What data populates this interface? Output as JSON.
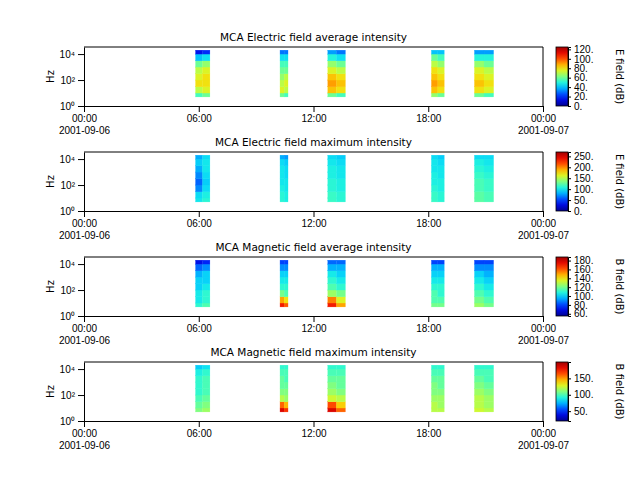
{
  "chart_data": [
    {
      "type": "heatmap",
      "title": "MCA  Electric field average intensity",
      "y_label": "Hz",
      "log": "y",
      "xlim": [
        "2001-09-06 00:00",
        "2001-09-07 00:00"
      ],
      "xticks": [
        {
          "value": "2001-09-06 00:00",
          "label": "00:00\n2001-09-06"
        },
        {
          "value": "2001-09-06 06:00",
          "label": "06:00"
        },
        {
          "value": "2001-09-06 12:00",
          "label": "12:00"
        },
        {
          "value": "2001-09-06 18:00",
          "label": "18:00"
        },
        {
          "value": "2001-09-07 00:00",
          "label": "00:00\n2001-09-07"
        }
      ],
      "ylim": [
        1,
        35000
      ],
      "yticks": [
        {
          "value": 1,
          "label": "10⁰"
        },
        {
          "value": 100,
          "label": "10²"
        },
        {
          "value": 10000,
          "label": "10⁴"
        }
      ],
      "x_bins": [
        [
          "2001-09-06 05:50",
          "2001-09-06 06:12"
        ],
        [
          "2001-09-06 06:12",
          "2001-09-06 06:35"
        ],
        [
          "2001-09-06 10:15",
          "2001-09-06 10:28"
        ],
        [
          "2001-09-06 10:28",
          "2001-09-06 10:40"
        ],
        [
          "2001-09-06 12:45",
          "2001-09-06 13:12"
        ],
        [
          "2001-09-06 13:12",
          "2001-09-06 13:40"
        ],
        [
          "2001-09-06 18:10",
          "2001-09-06 18:30"
        ],
        [
          "2001-09-06 18:30",
          "2001-09-06 18:50"
        ],
        [
          "2001-09-06 20:25",
          "2001-09-06 20:55"
        ],
        [
          "2001-09-06 20:55",
          "2001-09-06 21:25"
        ]
      ],
      "y_bins": [
        5,
        10,
        30,
        100,
        300,
        1000,
        3000,
        10000,
        20000
      ],
      "z": [
        [
          55,
          70,
          80,
          75,
          70,
          60,
          40,
          15
        ],
        [
          60,
          75,
          80,
          80,
          75,
          65,
          45,
          20
        ],
        [
          60,
          75,
          70,
          65,
          60,
          55,
          45,
          30
        ],
        [
          55,
          70,
          75,
          70,
          60,
          55,
          45,
          30
        ],
        [
          60,
          85,
          90,
          85,
          75,
          65,
          50,
          35
        ],
        [
          55,
          80,
          85,
          80,
          70,
          60,
          45,
          30
        ],
        [
          65,
          85,
          90,
          85,
          80,
          70,
          60,
          40
        ],
        [
          60,
          80,
          85,
          80,
          75,
          65,
          55,
          40
        ],
        [
          60,
          80,
          85,
          80,
          75,
          65,
          50,
          35
        ],
        [
          55,
          75,
          80,
          75,
          70,
          60,
          50,
          35
        ]
      ],
      "colorbar": {
        "label": "E field (dB)",
        "range": [
          0,
          125
        ],
        "ticks": [
          {
            "value": 0,
            "label": "0."
          },
          {
            "value": 20,
            "label": "20."
          },
          {
            "value": 40,
            "label": "40."
          },
          {
            "value": 60,
            "label": "60."
          },
          {
            "value": 80,
            "label": "80."
          },
          {
            "value": 100,
            "label": "100."
          },
          {
            "value": 120,
            "label": "120."
          }
        ]
      }
    },
    {
      "type": "heatmap",
      "title": "MCA  Electric field maximum intensity",
      "y_label": "Hz",
      "log": "y",
      "xlim": [
        "2001-09-06 00:00",
        "2001-09-07 00:00"
      ],
      "xticks": [
        {
          "value": "2001-09-06 00:00",
          "label": "00:00\n2001-09-06"
        },
        {
          "value": "2001-09-06 06:00",
          "label": "06:00"
        },
        {
          "value": "2001-09-06 12:00",
          "label": "12:00"
        },
        {
          "value": "2001-09-06 18:00",
          "label": "18:00"
        },
        {
          "value": "2001-09-07 00:00",
          "label": "00:00\n2001-09-07"
        }
      ],
      "ylim": [
        1,
        35000
      ],
      "yticks": [
        {
          "value": 1,
          "label": "10⁰"
        },
        {
          "value": 100,
          "label": "10²"
        },
        {
          "value": 10000,
          "label": "10⁴"
        }
      ],
      "x_bins": [
        [
          "2001-09-06 05:50",
          "2001-09-06 06:12"
        ],
        [
          "2001-09-06 06:12",
          "2001-09-06 06:35"
        ],
        [
          "2001-09-06 10:15",
          "2001-09-06 10:28"
        ],
        [
          "2001-09-06 10:28",
          "2001-09-06 10:40"
        ],
        [
          "2001-09-06 12:45",
          "2001-09-06 13:12"
        ],
        [
          "2001-09-06 13:12",
          "2001-09-06 13:40"
        ],
        [
          "2001-09-06 18:10",
          "2001-09-06 18:30"
        ],
        [
          "2001-09-06 18:30",
          "2001-09-06 18:50"
        ],
        [
          "2001-09-06 20:25",
          "2001-09-06 20:55"
        ],
        [
          "2001-09-06 20:55",
          "2001-09-06 21:25"
        ]
      ],
      "y_bins": [
        5,
        10,
        30,
        100,
        300,
        1000,
        3000,
        10000,
        20000
      ],
      "z": [
        [
          100,
          95,
          70,
          60,
          70,
          80,
          90,
          80
        ],
        [
          110,
          105,
          95,
          90,
          95,
          100,
          100,
          95
        ],
        [
          110,
          110,
          105,
          100,
          100,
          100,
          95,
          80
        ],
        [
          105,
          105,
          100,
          100,
          95,
          95,
          90,
          75
        ],
        [
          115,
          115,
          110,
          110,
          105,
          105,
          100,
          95
        ],
        [
          110,
          110,
          105,
          105,
          100,
          100,
          95,
          90
        ],
        [
          115,
          115,
          110,
          105,
          105,
          100,
          100,
          95
        ],
        [
          110,
          110,
          105,
          105,
          100,
          100,
          95,
          90
        ],
        [
          125,
          125,
          120,
          120,
          115,
          110,
          105,
          95
        ],
        [
          120,
          120,
          115,
          115,
          110,
          105,
          100,
          95
        ]
      ],
      "colorbar": {
        "label": "E field (dB)",
        "range": [
          0,
          270
        ],
        "ticks": [
          {
            "value": 0,
            "label": "0."
          },
          {
            "value": 50,
            "label": "50."
          },
          {
            "value": 100,
            "label": "100."
          },
          {
            "value": 150,
            "label": "150."
          },
          {
            "value": 200,
            "label": "200."
          },
          {
            "value": 250,
            "label": "250."
          }
        ]
      }
    },
    {
      "type": "heatmap",
      "title": "MCA  Magnetic field average intensity",
      "y_label": "Hz",
      "log": "y",
      "xlim": [
        "2001-09-06 00:00",
        "2001-09-07 00:00"
      ],
      "xticks": [
        {
          "value": "2001-09-06 00:00",
          "label": "00:00\n2001-09-06"
        },
        {
          "value": "2001-09-06 06:00",
          "label": "06:00"
        },
        {
          "value": "2001-09-06 12:00",
          "label": "12:00"
        },
        {
          "value": "2001-09-06 18:00",
          "label": "18:00"
        },
        {
          "value": "2001-09-07 00:00",
          "label": "00:00\n2001-09-07"
        }
      ],
      "ylim": [
        1,
        35000
      ],
      "yticks": [
        {
          "value": 1,
          "label": "10⁰"
        },
        {
          "value": 100,
          "label": "10²"
        },
        {
          "value": 10000,
          "label": "10⁴"
        }
      ],
      "x_bins": [
        [
          "2001-09-06 05:50",
          "2001-09-06 06:12"
        ],
        [
          "2001-09-06 06:12",
          "2001-09-06 06:35"
        ],
        [
          "2001-09-06 10:15",
          "2001-09-06 10:28"
        ],
        [
          "2001-09-06 10:28",
          "2001-09-06 10:40"
        ],
        [
          "2001-09-06 12:45",
          "2001-09-06 13:12"
        ],
        [
          "2001-09-06 13:12",
          "2001-09-06 13:40"
        ],
        [
          "2001-09-06 18:10",
          "2001-09-06 18:30"
        ],
        [
          "2001-09-06 18:30",
          "2001-09-06 18:50"
        ],
        [
          "2001-09-06 20:25",
          "2001-09-06 20:55"
        ],
        [
          "2001-09-06 20:55",
          "2001-09-06 21:25"
        ]
      ],
      "y_bins": [
        5,
        10,
        30,
        100,
        300,
        1000,
        3000,
        10000,
        20000
      ],
      "z": [
        [
          110,
          105,
          105,
          100,
          100,
          95,
          85,
          70
        ],
        [
          115,
          110,
          110,
          105,
          100,
          100,
          90,
          75
        ],
        [
          170,
          150,
          120,
          110,
          105,
          100,
          90,
          80
        ],
        [
          160,
          140,
          115,
          110,
          105,
          100,
          90,
          80
        ],
        [
          170,
          155,
          125,
          115,
          110,
          105,
          95,
          85
        ],
        [
          150,
          135,
          120,
          110,
          105,
          100,
          95,
          85
        ],
        [
          120,
          115,
          115,
          110,
          105,
          100,
          95,
          80
        ],
        [
          120,
          115,
          110,
          110,
          105,
          100,
          95,
          80
        ],
        [
          125,
          120,
          115,
          110,
          105,
          100,
          90,
          80
        ],
        [
          120,
          115,
          110,
          105,
          100,
          95,
          90,
          80
        ]
      ],
      "colorbar": {
        "label": "B field (dB)",
        "range": [
          55,
          188
        ],
        "ticks": [
          {
            "value": 60,
            "label": "60."
          },
          {
            "value": 80,
            "label": "80."
          },
          {
            "value": 100,
            "label": "100."
          },
          {
            "value": 120,
            "label": "120."
          },
          {
            "value": 140,
            "label": "140."
          },
          {
            "value": 160,
            "label": "160."
          },
          {
            "value": 180,
            "label": "180."
          }
        ]
      }
    },
    {
      "type": "heatmap",
      "title": "MCA  Magnetic field maximum intensity",
      "y_label": "Hz",
      "log": "y",
      "xlim": [
        "2001-09-06 00:00",
        "2001-09-07 00:00"
      ],
      "xticks": [
        {
          "value": "2001-09-06 00:00",
          "label": "00:00\n2001-09-06"
        },
        {
          "value": "2001-09-06 06:00",
          "label": "06:00"
        },
        {
          "value": "2001-09-06 12:00",
          "label": "12:00"
        },
        {
          "value": "2001-09-06 18:00",
          "label": "18:00"
        },
        {
          "value": "2001-09-07 00:00",
          "label": "00:00\n2001-09-07"
        }
      ],
      "ylim": [
        1,
        35000
      ],
      "yticks": [
        {
          "value": 1,
          "label": "10⁰"
        },
        {
          "value": 100,
          "label": "10²"
        },
        {
          "value": 10000,
          "label": "10⁴"
        }
      ],
      "x_bins": [
        [
          "2001-09-06 05:50",
          "2001-09-06 06:12"
        ],
        [
          "2001-09-06 06:12",
          "2001-09-06 06:35"
        ],
        [
          "2001-09-06 10:15",
          "2001-09-06 10:28"
        ],
        [
          "2001-09-06 10:28",
          "2001-09-06 10:40"
        ],
        [
          "2001-09-06 12:45",
          "2001-09-06 13:12"
        ],
        [
          "2001-09-06 13:12",
          "2001-09-06 13:40"
        ],
        [
          "2001-09-06 18:10",
          "2001-09-06 18:30"
        ],
        [
          "2001-09-06 18:30",
          "2001-09-06 18:50"
        ],
        [
          "2001-09-06 20:25",
          "2001-09-06 20:55"
        ],
        [
          "2001-09-06 20:55",
          "2001-09-06 21:25"
        ]
      ],
      "y_bins": [
        5,
        10,
        30,
        100,
        300,
        1000,
        3000,
        10000,
        20000
      ],
      "z": [
        [
          110,
          105,
          100,
          95,
          95,
          95,
          90,
          80
        ],
        [
          115,
          110,
          105,
          100,
          100,
          100,
          95,
          85
        ],
        [
          185,
          160,
          120,
          110,
          105,
          105,
          100,
          95
        ],
        [
          170,
          145,
          115,
          110,
          105,
          100,
          100,
          95
        ],
        [
          185,
          165,
          125,
          115,
          110,
          105,
          100,
          95
        ],
        [
          160,
          140,
          120,
          110,
          105,
          105,
          100,
          95
        ],
        [
          120,
          120,
          115,
          110,
          110,
          105,
          100,
          95
        ],
        [
          120,
          115,
          115,
          110,
          105,
          105,
          100,
          95
        ],
        [
          125,
          120,
          120,
          115,
          110,
          105,
          100,
          95
        ],
        [
          120,
          115,
          115,
          110,
          105,
          100,
          100,
          95
        ]
      ],
      "colorbar": {
        "label": "B field (dB)",
        "range": [
          20,
          200
        ],
        "ticks": [
          {
            "value": 50,
            "label": "50."
          },
          {
            "value": 100,
            "label": "100."
          },
          {
            "value": 150,
            "label": "150."
          }
        ]
      }
    }
  ]
}
